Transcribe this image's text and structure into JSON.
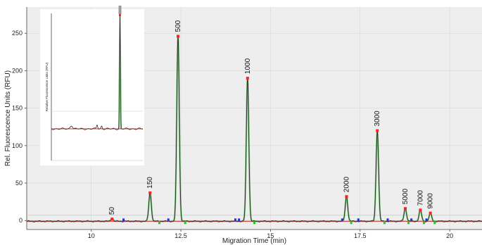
{
  "chart_data": {
    "type": "line",
    "title": "",
    "xlabel": "Migration Time (min)",
    "ylabel": "Rel. Fluorescence Units (RFU)",
    "xlim": [
      8.2,
      20.9
    ],
    "ylim": [
      -12,
      285
    ],
    "xticks": [
      10,
      12.5,
      15,
      17.5,
      20
    ],
    "yticks": [
      0,
      50,
      100,
      150,
      200,
      250
    ],
    "grid": true,
    "baseline_rfu": -1,
    "peaks": [
      {
        "label": "50",
        "x": 10.58,
        "y": 2
      },
      {
        "label": "150",
        "x": 11.64,
        "y": 37
      },
      {
        "label": "500",
        "x": 12.42,
        "y": 246
      },
      {
        "label": "1000",
        "x": 14.36,
        "y": 190
      },
      {
        "label": "2000",
        "x": 17.12,
        "y": 32
      },
      {
        "label": "3000",
        "x": 17.98,
        "y": 120
      },
      {
        "label": "5000",
        "x": 18.76,
        "y": 16
      },
      {
        "label": "7000",
        "x": 19.18,
        "y": 14
      },
      {
        "label": "9000",
        "x": 19.46,
        "y": 10
      }
    ],
    "peak_start_markers_x": [
      10.9,
      12.15,
      14.02,
      14.12,
      17.0,
      17.45,
      18.27,
      18.93,
      19.35
    ],
    "peak_end_markers_x": [
      11.9,
      12.62,
      14.55,
      17.25,
      18.18,
      18.85,
      19.28,
      19.58
    ],
    "colors": {
      "trace": "#2b2b2b",
      "fit": "#7cc47c",
      "baseline": "#d23a3a",
      "apex": "#ff2020",
      "start_marker": "#2233dd",
      "end_marker": "#22cc22",
      "plot_bg": "#eeeeee",
      "grid": "#d6d6d6"
    },
    "inset": {
      "ylabel": "Relative Fluorescence Units (RFU)",
      "spike_x": 0.75
    }
  }
}
